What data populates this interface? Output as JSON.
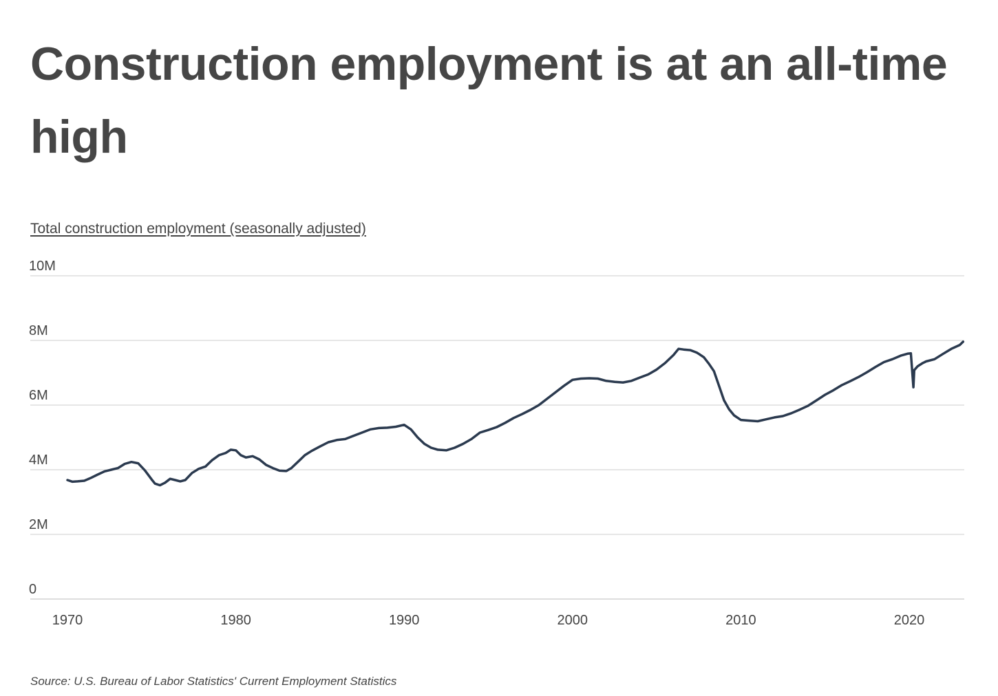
{
  "title": "Construction employment is at an all-time high",
  "source": "Source: U.S. Bureau of Labor Statistics' Current Employment Statistics",
  "colors": {
    "line": "#2b3a4f",
    "grid": "#cccccc",
    "text": "#444444"
  },
  "chart_data": {
    "type": "line",
    "title": "Total construction employment (seasonally adjusted)",
    "xlabel": "",
    "ylabel": "",
    "xlim": [
      1970,
      2023.2
    ],
    "ylim": [
      0,
      10000000
    ],
    "y_ticks": [
      0,
      2000000,
      4000000,
      6000000,
      8000000,
      10000000
    ],
    "y_tick_labels": [
      "0",
      "2M",
      "4M",
      "6M",
      "8M",
      "10M"
    ],
    "x_ticks": [
      1970,
      1980,
      1990,
      2000,
      2010,
      2020
    ],
    "x_tick_labels": [
      "1970",
      "1980",
      "1990",
      "2000",
      "2010",
      "2020"
    ],
    "grid": true,
    "legend": "none",
    "series": [
      {
        "x": [
          1970.0,
          1970.3,
          1970.6,
          1971.0,
          1971.4,
          1971.8,
          1972.2,
          1972.6,
          1973.0,
          1973.4,
          1973.8,
          1974.2,
          1974.6,
          1975.0,
          1975.2,
          1975.5,
          1975.8,
          1976.1,
          1976.4,
          1976.7,
          1977.0,
          1977.4,
          1977.8,
          1978.2,
          1978.6,
          1979.0,
          1979.4,
          1979.7,
          1980.0,
          1980.3,
          1980.6,
          1981.0,
          1981.4,
          1981.8,
          1982.2,
          1982.6,
          1983.0,
          1983.3,
          1983.7,
          1984.1,
          1984.5,
          1985.0,
          1985.5,
          1986.0,
          1986.5,
          1987.0,
          1987.5,
          1988.0,
          1988.5,
          1989.0,
          1989.5,
          1990.0,
          1990.4,
          1990.8,
          1991.2,
          1991.6,
          1992.0,
          1992.5,
          1993.0,
          1993.5,
          1994.0,
          1994.5,
          1995.0,
          1995.5,
          1996.0,
          1996.5,
          1997.0,
          1997.5,
          1998.0,
          1998.5,
          1999.0,
          1999.5,
          2000.0,
          2000.5,
          2001.0,
          2001.5,
          2002.0,
          2002.5,
          2003.0,
          2003.5,
          2004.0,
          2004.5,
          2005.0,
          2005.5,
          2006.0,
          2006.3,
          2006.6,
          2007.0,
          2007.4,
          2007.8,
          2008.1,
          2008.4,
          2008.7,
          2009.0,
          2009.3,
          2009.6,
          2010.0,
          2010.5,
          2011.0,
          2011.5,
          2012.0,
          2012.5,
          2013.0,
          2013.5,
          2014.0,
          2014.5,
          2015.0,
          2015.5,
          2016.0,
          2016.5,
          2017.0,
          2017.5,
          2018.0,
          2018.5,
          2019.0,
          2019.5,
          2019.9,
          2020.1,
          2020.25,
          2020.3,
          2020.5,
          2020.8,
          2021.0,
          2021.5,
          2022.0,
          2022.5,
          2023.0,
          2023.2
        ],
        "values": [
          3680000,
          3630000,
          3640000,
          3660000,
          3750000,
          3850000,
          3950000,
          4000000,
          4050000,
          4180000,
          4240000,
          4200000,
          3980000,
          3700000,
          3570000,
          3520000,
          3600000,
          3720000,
          3680000,
          3640000,
          3680000,
          3900000,
          4030000,
          4100000,
          4300000,
          4450000,
          4520000,
          4620000,
          4600000,
          4450000,
          4380000,
          4420000,
          4320000,
          4150000,
          4050000,
          3970000,
          3960000,
          4050000,
          4250000,
          4450000,
          4580000,
          4720000,
          4850000,
          4920000,
          4950000,
          5050000,
          5150000,
          5250000,
          5290000,
          5300000,
          5330000,
          5390000,
          5250000,
          5000000,
          4800000,
          4680000,
          4620000,
          4600000,
          4680000,
          4800000,
          4950000,
          5150000,
          5230000,
          5320000,
          5450000,
          5600000,
          5720000,
          5850000,
          6000000,
          6200000,
          6400000,
          6600000,
          6780000,
          6820000,
          6830000,
          6820000,
          6750000,
          6720000,
          6700000,
          6750000,
          6850000,
          6950000,
          7100000,
          7300000,
          7550000,
          7740000,
          7720000,
          7700000,
          7620000,
          7480000,
          7280000,
          7050000,
          6600000,
          6150000,
          5870000,
          5680000,
          5540000,
          5520000,
          5500000,
          5560000,
          5620000,
          5660000,
          5750000,
          5860000,
          5980000,
          6150000,
          6320000,
          6460000,
          6620000,
          6740000,
          6870000,
          7020000,
          7180000,
          7330000,
          7420000,
          7530000,
          7590000,
          7600000,
          6550000,
          7080000,
          7200000,
          7300000,
          7350000,
          7420000,
          7580000,
          7740000,
          7860000,
          7960000
        ]
      }
    ]
  }
}
